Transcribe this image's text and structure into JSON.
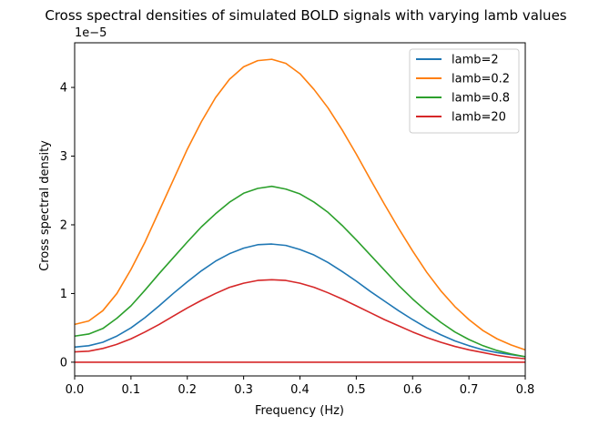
{
  "chart_data": {
    "type": "line",
    "title": "Cross spectral densities of simulated BOLD signals with varying lamb values",
    "xlabel": "Frequency (Hz)",
    "ylabel": "Cross spectral density",
    "offset_text": "1e−5",
    "xlim": [
      0,
      0.8
    ],
    "ylim": [
      -0.2,
      4.65
    ],
    "y_scale": 1e-05,
    "x_ticks": [
      0,
      0.1,
      0.2,
      0.3,
      0.4,
      0.5,
      0.6,
      0.7,
      0.8
    ],
    "x_tick_labels": [
      "0.0",
      "0.1",
      "0.2",
      "0.3",
      "0.4",
      "0.5",
      "0.6",
      "0.7",
      "0.8"
    ],
    "y_ticks": [
      0,
      1,
      2,
      3,
      4
    ],
    "y_tick_labels": [
      "0",
      "1",
      "2",
      "3",
      "4"
    ],
    "grid": false,
    "legend_position": "top-right",
    "x": [
      0.0,
      0.025,
      0.05,
      0.075,
      0.1,
      0.125,
      0.15,
      0.175,
      0.2,
      0.225,
      0.25,
      0.275,
      0.3,
      0.325,
      0.35,
      0.375,
      0.4,
      0.425,
      0.45,
      0.475,
      0.5,
      0.525,
      0.55,
      0.575,
      0.6,
      0.625,
      0.65,
      0.675,
      0.7,
      0.725,
      0.75,
      0.775,
      0.8
    ],
    "series": [
      {
        "name": "lamb=2",
        "color": "#1f77b4",
        "values": [
          0.22,
          0.24,
          0.29,
          0.38,
          0.5,
          0.65,
          0.82,
          1.0,
          1.17,
          1.33,
          1.47,
          1.58,
          1.66,
          1.71,
          1.72,
          1.7,
          1.64,
          1.56,
          1.45,
          1.32,
          1.18,
          1.03,
          0.89,
          0.75,
          0.62,
          0.5,
          0.4,
          0.31,
          0.24,
          0.18,
          0.14,
          0.11,
          0.08
        ]
      },
      {
        "name": "lamb=0.2",
        "color": "#ff7f0e",
        "values": [
          0.55,
          0.6,
          0.75,
          1.0,
          1.35,
          1.75,
          2.2,
          2.65,
          3.1,
          3.5,
          3.85,
          4.12,
          4.3,
          4.39,
          4.41,
          4.35,
          4.2,
          3.97,
          3.7,
          3.38,
          3.03,
          2.66,
          2.3,
          1.95,
          1.62,
          1.31,
          1.04,
          0.81,
          0.62,
          0.46,
          0.34,
          0.25,
          0.18
        ]
      },
      {
        "name": "lamb=0.8",
        "color": "#2ca02c",
        "values": [
          0.38,
          0.41,
          0.49,
          0.64,
          0.82,
          1.05,
          1.29,
          1.52,
          1.75,
          1.97,
          2.16,
          2.33,
          2.46,
          2.53,
          2.56,
          2.52,
          2.45,
          2.33,
          2.18,
          1.99,
          1.78,
          1.56,
          1.34,
          1.12,
          0.92,
          0.74,
          0.58,
          0.44,
          0.33,
          0.24,
          0.17,
          0.12,
          0.08
        ]
      },
      {
        "name": "lamb=20",
        "color": "#d62728",
        "values": [
          0.15,
          0.16,
          0.2,
          0.26,
          0.34,
          0.44,
          0.55,
          0.67,
          0.79,
          0.9,
          1.0,
          1.09,
          1.15,
          1.19,
          1.2,
          1.19,
          1.15,
          1.09,
          1.01,
          0.92,
          0.82,
          0.72,
          0.62,
          0.53,
          0.44,
          0.36,
          0.29,
          0.23,
          0.18,
          0.14,
          0.1,
          0.07,
          0.05
        ]
      },
      {
        "name": "",
        "color": "#d62728",
        "values": [
          0.0,
          0.0,
          0.0,
          0.0,
          0.0,
          0.0,
          0.0,
          0.0,
          0.0,
          0.0,
          0.0,
          0.0,
          0.0,
          0.0,
          0.0,
          0.0,
          0.0,
          0.0,
          0.0,
          0.0,
          0.0,
          0.0,
          0.0,
          0.0,
          0.0,
          0.0,
          0.0,
          0.0,
          0.0,
          0.0,
          0.0,
          0.0,
          0.0
        ]
      }
    ]
  }
}
